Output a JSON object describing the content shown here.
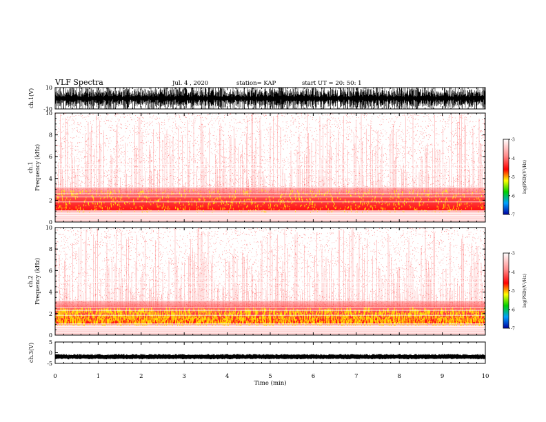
{
  "header": {
    "title": "VLF Spectra",
    "date": "Jul. 4 , 2020",
    "station": "station= KAP",
    "start": "start UT = 20: 50: 1"
  },
  "chart_data": [
    {
      "type": "line",
      "name": "ch1-waveform",
      "ylabel": "ch.1(V)",
      "ylim": [
        -10,
        10
      ],
      "yticks": [
        "10",
        "-10"
      ],
      "xlim": [
        0,
        10
      ]
    },
    {
      "type": "heatmap",
      "name": "ch1-spectrogram",
      "ylabel": "ch.1\nFrequency (kHz)",
      "ylabel_line1": "ch.1",
      "ylabel_line2": "Frequency (kHz)",
      "ylim": [
        0,
        10
      ],
      "yticks": [
        "0",
        "2",
        "4",
        "6",
        "8",
        "10"
      ],
      "xlim": [
        0,
        10
      ],
      "colorbar": {
        "label": "log(PSD)(V²/Hz)",
        "range": [
          -7,
          -3
        ],
        "ticks": [
          "-3",
          "-4",
          "-5",
          "-6",
          "-7"
        ]
      }
    },
    {
      "type": "heatmap",
      "name": "ch2-spectrogram",
      "ylabel_line1": "ch.2",
      "ylabel_line2": "Frequency (kHz)",
      "ylim": [
        0,
        10
      ],
      "yticks": [
        "0",
        "2",
        "4",
        "6",
        "8",
        "10"
      ],
      "xlim": [
        0,
        10
      ],
      "colorbar": {
        "label": "log(PSD)(V²/Hz)",
        "range": [
          -7,
          -3
        ],
        "ticks": [
          "-3",
          "-4",
          "-5",
          "-6",
          "-7"
        ]
      }
    },
    {
      "type": "line",
      "name": "ch3-waveform",
      "ylabel": "ch.3(V)",
      "ylim": [
        -5,
        5
      ],
      "yticks": [
        "5",
        "0",
        "-5"
      ],
      "xlim": [
        0,
        10
      ],
      "xlabel": "Time (min)",
      "xticks": [
        "0",
        "1",
        "2",
        "3",
        "4",
        "5",
        "6",
        "7",
        "8",
        "9",
        "10"
      ]
    }
  ],
  "colors": {
    "heat_high": "#ffff00",
    "heat_mid": "#ff0000",
    "heat_low": "#ffffff",
    "wave": "#000000"
  }
}
